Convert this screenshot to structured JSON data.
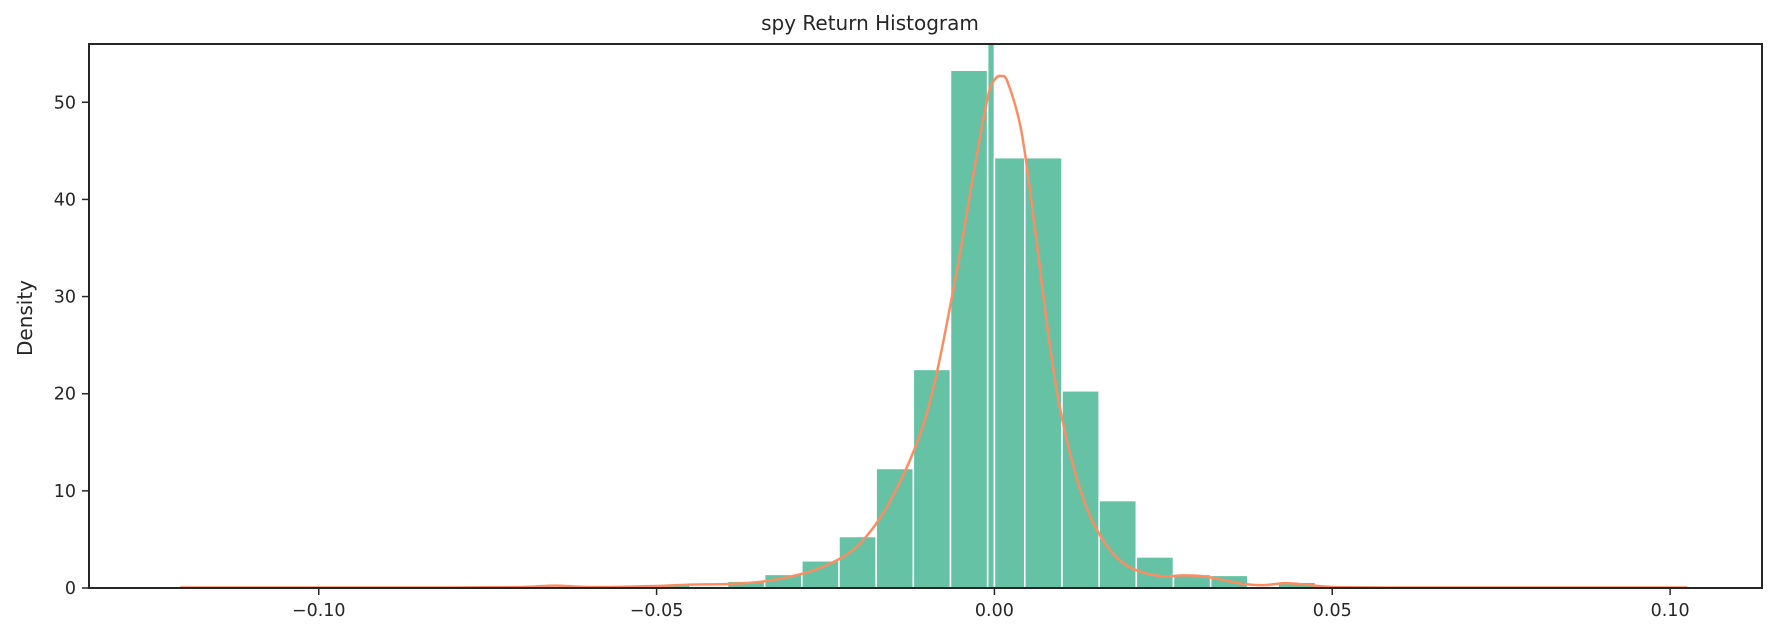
{
  "chart_data": {
    "type": "bar",
    "title": "spy Return Histogram",
    "xlabel": "",
    "ylabel": "Density",
    "xlim": [
      -0.134,
      0.1136
    ],
    "ylim": [
      0,
      56
    ],
    "xticks": [
      -0.1,
      -0.05,
      0.0,
      0.05,
      0.1
    ],
    "xtick_labels": [
      "−0.10",
      "−0.05",
      "0.00",
      "0.05",
      "0.10"
    ],
    "yticks": [
      0,
      10,
      20,
      30,
      40,
      50
    ],
    "ytick_labels": [
      "0",
      "10",
      "20",
      "30",
      "40",
      "50"
    ],
    "grid": false,
    "bins": [
      {
        "x0": -0.1205,
        "x1": -0.115,
        "y": 0.1
      },
      {
        "x0": -0.05,
        "x1": -0.045,
        "y": 0.3
      },
      {
        "x0": -0.045,
        "x1": -0.0395,
        "y": 0.2
      },
      {
        "x0": -0.0395,
        "x1": -0.034,
        "y": 0.7
      },
      {
        "x0": -0.034,
        "x1": -0.0285,
        "y": 1.4
      },
      {
        "x0": -0.0285,
        "x1": -0.023,
        "y": 2.8
      },
      {
        "x0": -0.023,
        "x1": -0.0175,
        "y": 5.3
      },
      {
        "x0": -0.0175,
        "x1": -0.012,
        "y": 12.3
      },
      {
        "x0": -0.012,
        "x1": -0.0065,
        "y": 22.5
      },
      {
        "x0": -0.0065,
        "x1": -0.001,
        "y": 53.3
      },
      {
        "x0": -0.001,
        "x1": 0.0,
        "y": 56.0
      },
      {
        "x0": 0.0,
        "x1": 0.0045,
        "y": 44.3
      },
      {
        "x0": 0.0045,
        "x1": 0.01,
        "y": 44.3
      },
      {
        "x0": 0.01,
        "x1": 0.0155,
        "y": 20.3
      },
      {
        "x0": 0.0155,
        "x1": 0.021,
        "y": 9.0
      },
      {
        "x0": 0.021,
        "x1": 0.0265,
        "y": 3.2
      },
      {
        "x0": 0.0265,
        "x1": 0.032,
        "y": 1.4
      },
      {
        "x0": 0.032,
        "x1": 0.0375,
        "y": 1.3
      },
      {
        "x0": 0.042,
        "x1": 0.0475,
        "y": 0.6
      }
    ],
    "kde": {
      "x": [
        -0.1205,
        -0.1,
        -0.08,
        -0.07,
        -0.065,
        -0.06,
        -0.05,
        -0.045,
        -0.04,
        -0.035,
        -0.03,
        -0.025,
        -0.02,
        -0.015,
        -0.01,
        -0.006,
        -0.003,
        -0.001,
        0.0,
        0.001,
        0.002,
        0.004,
        0.006,
        0.008,
        0.01,
        0.013,
        0.016,
        0.019,
        0.022,
        0.025,
        0.028,
        0.031,
        0.034,
        0.037,
        0.04,
        0.043,
        0.046,
        0.05,
        0.06,
        0.08,
        0.1025
      ],
      "y": [
        0.05,
        0.05,
        0.05,
        0.1,
        0.25,
        0.1,
        0.2,
        0.35,
        0.4,
        0.6,
        1.2,
        2.3,
        4.5,
        9.5,
        18.0,
        31.0,
        43.0,
        50.5,
        52.3,
        52.7,
        52.0,
        47.0,
        37.0,
        26.0,
        17.5,
        9.5,
        5.0,
        2.6,
        1.6,
        1.2,
        1.3,
        1.2,
        0.8,
        0.4,
        0.3,
        0.5,
        0.35,
        0.1,
        0.05,
        0.05,
        0.05
      ]
    },
    "bar_color": "#66c2a5",
    "kde_color": "#fc8d62"
  }
}
